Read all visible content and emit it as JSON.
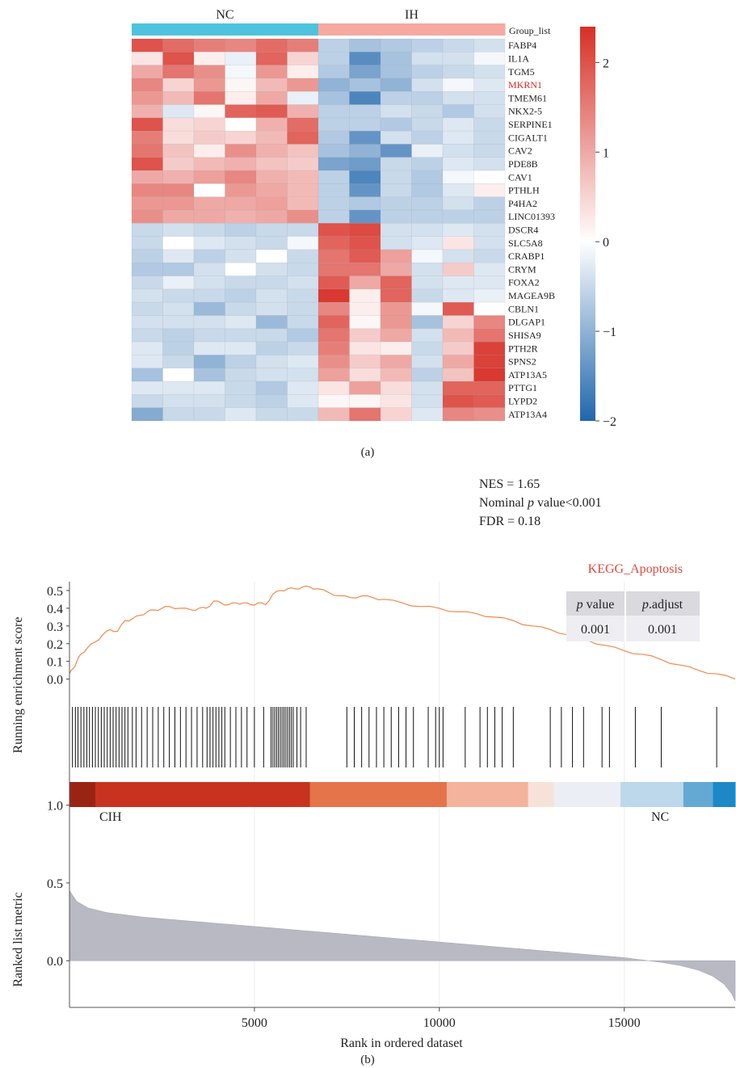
{
  "panel_a": {
    "caption": "(a)",
    "chart_data": {
      "type": "heatmap",
      "groups": [
        {
          "name": "NC",
          "color": "#4fc3dd",
          "n_columns": 6
        },
        {
          "name": "IH",
          "color": "#f5a9a1",
          "n_columns": 6
        }
      ],
      "group_row_label": "Group_list",
      "highlight_gene": "MKRN1",
      "highlight_color": "#d62728",
      "rows": [
        "FABP4",
        "IL1A",
        "TGM5",
        "MKRN1",
        "TMEM61",
        "NKX2-5",
        "SERPINE1",
        "CIGALT1",
        "CAV2",
        "PDE8B",
        "CAV1",
        "PTHLH",
        "P4HA2",
        "LINC01393",
        "DSCR4",
        "SLC5A8",
        "CRABP1",
        "CRYM",
        "FOXA2",
        "MAGEA9B",
        "CBLN1",
        "DLGAP1",
        "SHISA9",
        "PTH2R",
        "SPNS2",
        "ATP13A5",
        "PTTG1",
        "LYPD2",
        "ATP13A4"
      ],
      "values": [
        [
          2.0,
          1.7,
          1.5,
          1.4,
          1.7,
          1.5,
          -0.6,
          -0.8,
          -0.7,
          -0.6,
          -0.5,
          -0.4
        ],
        [
          0.3,
          2.0,
          0.2,
          -0.2,
          1.8,
          0.5,
          -0.6,
          -1.5,
          -0.8,
          -0.4,
          -0.4,
          -0.1
        ],
        [
          1.0,
          1.6,
          1.3,
          -0.1,
          1.2,
          0.2,
          -0.7,
          -1.2,
          -0.8,
          -0.6,
          -0.5,
          -0.4
        ],
        [
          1.4,
          0.5,
          1.2,
          0.1,
          0.8,
          1.2,
          -1.0,
          -0.8,
          -1.0,
          -0.4,
          -0.1,
          -0.3
        ],
        [
          1.2,
          0.8,
          1.6,
          0.2,
          1.0,
          -0.2,
          -0.8,
          -1.6,
          -0.6,
          -0.6,
          -0.4,
          -0.4
        ],
        [
          0.9,
          -0.3,
          0.1,
          1.8,
          1.9,
          0.9,
          -0.6,
          -0.6,
          -0.4,
          -0.5,
          -0.7,
          -0.4
        ],
        [
          2.0,
          0.4,
          0.5,
          0.0,
          0.9,
          1.7,
          -0.6,
          -0.6,
          -0.7,
          -0.5,
          -0.3,
          -0.5
        ],
        [
          1.5,
          0.4,
          0.6,
          0.5,
          0.8,
          1.8,
          -0.7,
          -1.4,
          -0.4,
          -0.6,
          -0.3,
          -0.5
        ],
        [
          1.6,
          0.7,
          0.2,
          1.3,
          0.9,
          0.7,
          -0.8,
          -1.0,
          -1.4,
          -0.2,
          -0.4,
          -0.5
        ],
        [
          2.0,
          0.6,
          0.8,
          0.9,
          0.7,
          0.6,
          -1.2,
          -1.3,
          -0.5,
          -0.6,
          -0.3,
          -0.4
        ],
        [
          1.0,
          0.9,
          1.1,
          1.4,
          0.9,
          0.8,
          -0.6,
          -1.6,
          -0.5,
          -0.7,
          -0.1,
          0.0
        ],
        [
          1.4,
          1.4,
          0.0,
          1.2,
          1.0,
          0.8,
          -0.6,
          -1.4,
          -0.5,
          -0.7,
          -0.3,
          0.2
        ],
        [
          1.2,
          1.2,
          1.0,
          1.0,
          1.1,
          0.8,
          -0.6,
          -0.7,
          -0.6,
          -0.6,
          -0.4,
          -0.6
        ],
        [
          1.3,
          1.0,
          1.0,
          0.9,
          1.0,
          1.3,
          -0.6,
          -1.4,
          -0.6,
          -0.6,
          -0.6,
          -0.6
        ],
        [
          -0.5,
          -0.4,
          -0.5,
          -0.6,
          -0.5,
          -0.5,
          2.0,
          2.1,
          -0.4,
          -0.4,
          -0.3,
          -0.4
        ],
        [
          -0.5,
          0.0,
          -0.3,
          -0.4,
          -0.5,
          -0.1,
          1.8,
          2.0,
          -0.4,
          -0.3,
          0.3,
          -0.4
        ],
        [
          -0.6,
          -0.3,
          -0.6,
          -0.4,
          0.0,
          -0.5,
          1.6,
          1.9,
          1.1,
          -0.1,
          -0.4,
          -0.5
        ],
        [
          -0.7,
          -0.7,
          -0.4,
          0.0,
          -0.4,
          -0.5,
          1.6,
          1.6,
          1.0,
          -0.4,
          0.6,
          -0.3
        ],
        [
          -0.5,
          -0.2,
          -0.4,
          -0.5,
          -0.5,
          -0.4,
          1.9,
          1.0,
          1.8,
          -0.4,
          -0.3,
          -0.3
        ],
        [
          -0.4,
          -0.5,
          -0.5,
          -0.6,
          -0.4,
          -0.5,
          2.3,
          0.2,
          1.8,
          -0.5,
          -0.3,
          -0.2
        ],
        [
          -0.5,
          -0.4,
          -0.9,
          -0.5,
          -0.4,
          -0.5,
          1.4,
          0.2,
          1.2,
          -0.1,
          1.9,
          0.0
        ],
        [
          -0.4,
          -0.4,
          -0.4,
          -0.3,
          -0.9,
          -0.5,
          1.8,
          0.1,
          1.2,
          -0.8,
          0.5,
          1.4
        ],
        [
          -0.5,
          -0.6,
          -0.5,
          -0.5,
          -0.5,
          -0.7,
          1.6,
          0.6,
          1.0,
          -0.4,
          0.8,
          1.6
        ],
        [
          -0.3,
          -0.6,
          -0.3,
          -0.3,
          -0.6,
          -0.5,
          1.5,
          0.3,
          0.2,
          -0.5,
          0.6,
          2.2
        ],
        [
          -0.3,
          -0.5,
          -1.0,
          -0.6,
          -0.4,
          -0.3,
          1.3,
          0.6,
          1.0,
          -0.4,
          1.0,
          2.2
        ],
        [
          -0.8,
          0.0,
          -0.8,
          -0.5,
          -0.4,
          -0.4,
          1.1,
          0.4,
          0.8,
          -0.6,
          0.7,
          2.3
        ],
        [
          -0.3,
          -0.3,
          -0.3,
          -0.5,
          -0.7,
          -0.3,
          0.3,
          1.1,
          0.4,
          -0.4,
          1.8,
          1.8
        ],
        [
          -0.5,
          -0.4,
          -0.4,
          -0.5,
          -0.6,
          -0.3,
          0.1,
          0.1,
          0.3,
          -0.4,
          2.0,
          1.9
        ],
        [
          -1.1,
          -0.5,
          -0.5,
          -0.3,
          -0.5,
          -0.5,
          0.8,
          1.6,
          0.5,
          -0.3,
          1.4,
          1.3
        ]
      ],
      "colorbar": {
        "min": -2,
        "max": 2.4,
        "ticks": [
          2,
          1,
          0,
          -1,
          -2
        ],
        "tick_labels": [
          "2",
          "1",
          "0",
          "−1",
          "−2"
        ],
        "low_color": "#2166ac",
        "mid_color": "#ffffff",
        "high_color": "#d73027"
      }
    }
  },
  "panel_b": {
    "caption": "(b)",
    "stats": {
      "nes": "NES = 1.65",
      "pval_prefix": "Nominal ",
      "pval_italic": "p",
      "pval_suffix": " value<0.001",
      "fdr": "FDR = 0.18"
    },
    "gene_set_title": "KEGG_Apoptosis",
    "gene_set_title_color": "#e2483e",
    "table": {
      "headers": [
        {
          "italic": "p",
          "rest": " value"
        },
        {
          "italic": "p",
          "rest": ".adjust"
        }
      ],
      "values": [
        "0.001",
        "0.001"
      ]
    },
    "chart_data": {
      "type": "line",
      "title": "",
      "ylabel_top": "Running enrichment score",
      "ylabel_bottom": "Ranked list metric",
      "xlabel": "Rank in ordered dataset",
      "xlim": [
        0,
        18000
      ],
      "xticks": [
        5000,
        10000,
        15000
      ],
      "xtick_labels": [
        "5000",
        "10000",
        "15000"
      ],
      "es_ylim": [
        -0.02,
        0.55
      ],
      "es_yticks": [
        0.0,
        0.1,
        0.2,
        0.3,
        0.4,
        0.5
      ],
      "es_ytick_labels": [
        "0.0",
        "0.1",
        "0.2",
        "0.3",
        "0.4",
        "0.5"
      ],
      "metric_ylim": [
        -0.3,
        1.05
      ],
      "metric_yticks": [
        1.0,
        0.5,
        0.0
      ],
      "metric_ytick_labels": [
        "1.0",
        "0.5",
        "0.0"
      ],
      "line_color": "#f08a4b",
      "running_es": {
        "x": [
          0,
          100,
          200,
          300,
          500,
          700,
          900,
          1100,
          1300,
          1500,
          1700,
          1900,
          2100,
          2300,
          2500,
          2700,
          3000,
          3300,
          3500,
          3700,
          3900,
          4100,
          4300,
          4500,
          4700,
          4900,
          5100,
          5300,
          5500,
          5700,
          5900,
          6100,
          6300,
          6500,
          6700,
          7000,
          7300,
          7600,
          7900,
          8200,
          8500,
          9000,
          9500,
          10000,
          10500,
          11000,
          11500,
          12000,
          12500,
          13000,
          13500,
          14000,
          14500,
          15000,
          15500,
          16000,
          16500,
          17000,
          17500,
          18000
        ],
        "y": [
          0.03,
          0.06,
          0.1,
          0.14,
          0.18,
          0.21,
          0.25,
          0.28,
          0.27,
          0.33,
          0.34,
          0.36,
          0.38,
          0.39,
          0.4,
          0.41,
          0.4,
          0.39,
          0.4,
          0.4,
          0.44,
          0.43,
          0.42,
          0.43,
          0.43,
          0.42,
          0.43,
          0.42,
          0.48,
          0.5,
          0.51,
          0.51,
          0.52,
          0.52,
          0.51,
          0.49,
          0.47,
          0.46,
          0.47,
          0.46,
          0.45,
          0.43,
          0.41,
          0.4,
          0.38,
          0.37,
          0.35,
          0.33,
          0.3,
          0.28,
          0.25,
          0.22,
          0.19,
          0.16,
          0.14,
          0.11,
          0.08,
          0.05,
          0.03,
          0.0
        ]
      },
      "hit_positions": [
        80,
        160,
        230,
        310,
        390,
        470,
        540,
        620,
        700,
        780,
        860,
        940,
        1020,
        1100,
        1180,
        1260,
        1340,
        1420,
        1500,
        1580,
        1700,
        1800,
        1950,
        2100,
        2250,
        2400,
        2550,
        2700,
        2850,
        3000,
        3150,
        3300,
        3450,
        3600,
        3720,
        3800,
        3880,
        3960,
        4040,
        4120,
        4200,
        4350,
        4500,
        4650,
        4800,
        5000,
        5250,
        5450,
        5500,
        5550,
        5600,
        5650,
        5700,
        5750,
        5800,
        5850,
        5900,
        5950,
        6000,
        6050,
        6150,
        6250,
        6400,
        7500,
        7700,
        7900,
        8100,
        8300,
        8500,
        8700,
        8900,
        9100,
        9300,
        9700,
        9900,
        10000,
        10100,
        10700,
        11100,
        11300,
        11500,
        11700,
        12000,
        13000,
        13300,
        13600,
        13900,
        14400,
        14600,
        15300,
        16000,
        17500
      ],
      "color_band": [
        {
          "from": 0,
          "to": 700,
          "color": "#9a2414"
        },
        {
          "from": 700,
          "to": 6500,
          "color": "#c7331f"
        },
        {
          "from": 6500,
          "to": 10200,
          "color": "#e5744a"
        },
        {
          "from": 10200,
          "to": 12400,
          "color": "#f3b39c"
        },
        {
          "from": 12400,
          "to": 13100,
          "color": "#f7e2d9"
        },
        {
          "from": 13100,
          "to": 14900,
          "color": "#eceef5"
        },
        {
          "from": 14900,
          "to": 16600,
          "color": "#bcd8ea"
        },
        {
          "from": 16600,
          "to": 17400,
          "color": "#63a9d4"
        },
        {
          "from": 17400,
          "to": 18000,
          "color": "#1d88c6"
        }
      ],
      "band_left_label": "CIH",
      "band_right_label": "NC",
      "ranked_metric": {
        "x": [
          0,
          200,
          500,
          1000,
          2000,
          3000,
          4000,
          5000,
          6000,
          7000,
          8000,
          9000,
          10000,
          11000,
          12000,
          13000,
          14000,
          15000,
          16000,
          16500,
          17000,
          17400,
          17700,
          17900,
          18000
        ],
        "y": [
          0.45,
          0.38,
          0.34,
          0.31,
          0.28,
          0.26,
          0.24,
          0.22,
          0.2,
          0.18,
          0.16,
          0.14,
          0.12,
          0.1,
          0.08,
          0.06,
          0.04,
          0.02,
          -0.01,
          -0.03,
          -0.06,
          -0.1,
          -0.15,
          -0.21,
          -0.26
        ]
      }
    }
  }
}
